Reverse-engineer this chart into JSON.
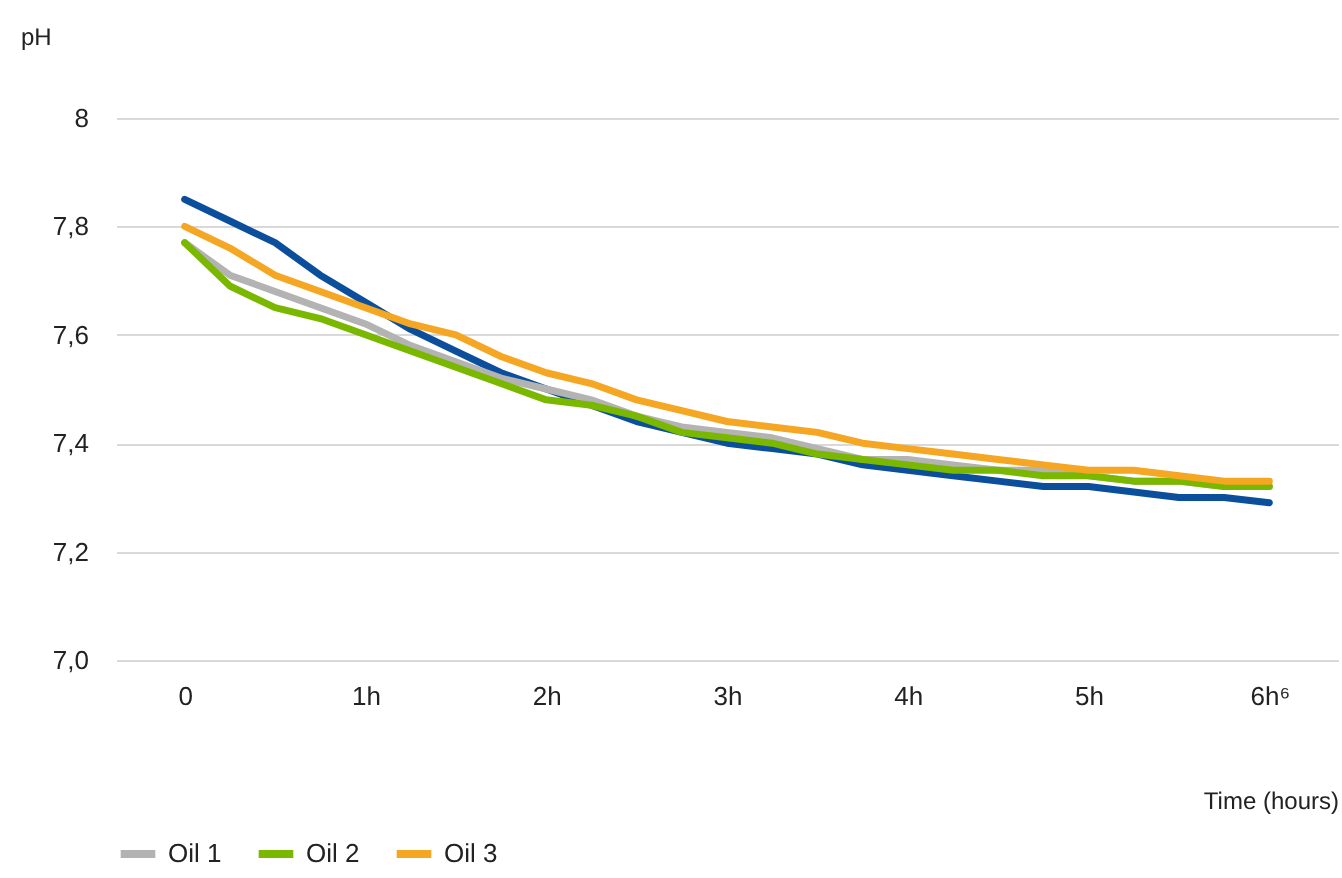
{
  "chart_data": {
    "type": "line",
    "xlabel": "Time (hours)",
    "ylabel": "pH",
    "x": [
      0,
      0.25,
      0.5,
      0.75,
      1,
      1.25,
      1.5,
      1.75,
      2,
      2.25,
      2.5,
      2.75,
      3,
      3.25,
      3.5,
      3.75,
      4,
      4.25,
      4.5,
      4.75,
      5,
      5.25,
      5.5,
      5.75,
      6
    ],
    "series": [
      {
        "color": "#0b4f9c",
        "values": [
          7.85,
          7.81,
          7.77,
          7.71,
          7.66,
          7.61,
          7.57,
          7.53,
          7.5,
          7.47,
          7.44,
          7.42,
          7.4,
          7.39,
          7.38,
          7.36,
          7.35,
          7.34,
          7.33,
          7.32,
          7.32,
          7.31,
          7.3,
          7.3,
          7.29
        ]
      },
      {
        "name": "Oil 1",
        "color": "#b3b3b3",
        "values": [
          7.77,
          7.71,
          7.68,
          7.65,
          7.62,
          7.58,
          7.55,
          7.52,
          7.5,
          7.48,
          7.45,
          7.43,
          7.42,
          7.41,
          7.39,
          7.37,
          7.37,
          7.36,
          7.35,
          7.35,
          7.34,
          7.33,
          7.33,
          7.32,
          7.32
        ]
      },
      {
        "name": "Oil 2",
        "color": "#7ab800",
        "values": [
          7.77,
          7.69,
          7.65,
          7.63,
          7.6,
          7.57,
          7.54,
          7.51,
          7.48,
          7.47,
          7.45,
          7.42,
          7.41,
          7.4,
          7.38,
          7.37,
          7.36,
          7.35,
          7.35,
          7.34,
          7.34,
          7.33,
          7.33,
          7.32,
          7.32
        ]
      },
      {
        "name": "Oil 3",
        "color": "#f5a623",
        "values": [
          7.8,
          7.76,
          7.71,
          7.68,
          7.65,
          7.62,
          7.6,
          7.56,
          7.53,
          7.51,
          7.48,
          7.46,
          7.44,
          7.43,
          7.42,
          7.4,
          7.39,
          7.38,
          7.37,
          7.36,
          7.35,
          7.35,
          7.34,
          7.33,
          7.33
        ]
      }
    ],
    "xlim": [
      -0.38,
      6.38
    ],
    "xticks": [
      0,
      {
        "value": 1,
        "label": "1h"
      },
      {
        "value": 2,
        "label": "2h"
      },
      {
        "value": 3,
        "label": "3h"
      },
      {
        "value": 4,
        "label": "4h"
      },
      {
        "value": 5,
        "label": "5h"
      },
      {
        "value": 6,
        "label": "6h⁶"
      }
    ],
    "ylim": [
      7,
      8
    ],
    "yticks": [
      {
        "value": 7,
        "label": "7,0"
      },
      {
        "value": 7.2,
        "label": "7,2"
      },
      {
        "value": 7.4,
        "label": "7,4"
      },
      {
        "value": 7.6,
        "label": "7,6"
      },
      {
        "value": 7.8,
        "label": "7,8"
      },
      8
    ],
    "grid": "y",
    "legend": "bottom",
    "marker": "none",
    "line_style": "solid"
  }
}
